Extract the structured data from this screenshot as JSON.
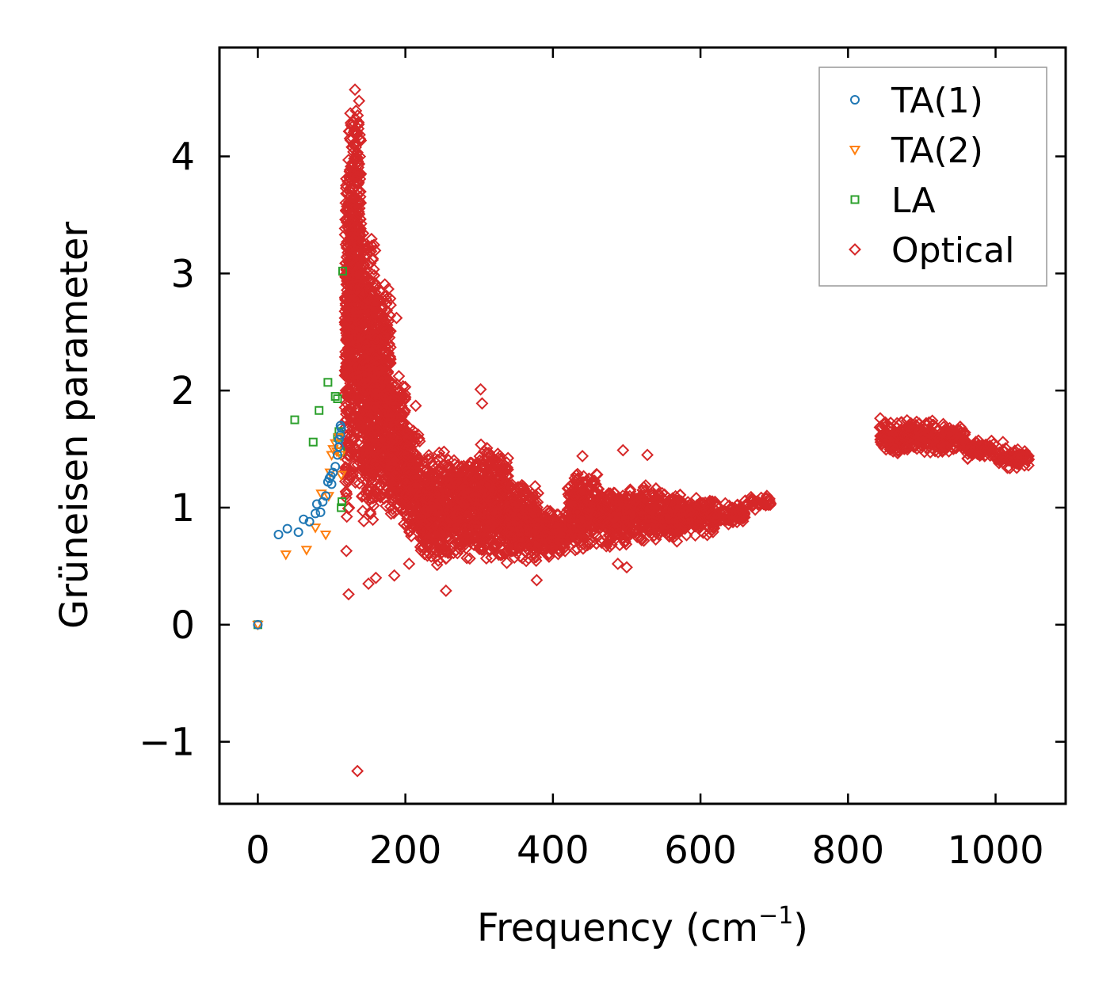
{
  "chart_data": {
    "type": "scatter",
    "title": "",
    "xlabel": "Frequency (cm",
    "xlabel_sup": "−1",
    "xlabel_close": ")",
    "ylabel": "Grüneisen parameter",
    "xlim": [
      -52,
      1095
    ],
    "ylim": [
      -1.53,
      4.93
    ],
    "xticks": [
      0,
      200,
      400,
      600,
      800,
      1000
    ],
    "xtick_labels": [
      "0",
      "200",
      "400",
      "600",
      "800",
      "1000"
    ],
    "yticks": [
      -1,
      0,
      1,
      2,
      3,
      4
    ],
    "ytick_labels": [
      "−1",
      "0",
      "1",
      "2",
      "3",
      "4"
    ],
    "grid": false,
    "legend_position": "top-right",
    "series": [
      {
        "name": "TA(1)",
        "marker": "circle",
        "color": "#1f77b4",
        "points": [
          [
            0,
            0
          ],
          [
            28,
            0.77
          ],
          [
            40,
            0.82
          ],
          [
            55,
            0.79
          ],
          [
            62,
            0.9
          ],
          [
            70,
            0.88
          ],
          [
            78,
            0.95
          ],
          [
            80,
            1.03
          ],
          [
            85,
            0.96
          ],
          [
            88,
            1.05
          ],
          [
            92,
            1.1
          ],
          [
            95,
            1.22
          ],
          [
            97,
            1.25
          ],
          [
            99,
            1.27
          ],
          [
            100,
            1.2
          ],
          [
            102,
            1.3
          ],
          [
            105,
            1.35
          ],
          [
            108,
            1.45
          ],
          [
            110,
            1.58
          ],
          [
            112,
            1.62
          ],
          [
            113,
            1.68
          ],
          [
            112,
            1.7
          ],
          [
            110,
            1.52
          ]
        ]
      },
      {
        "name": "TA(2)",
        "marker": "triangle-down",
        "color": "#ff7f0e",
        "points": [
          [
            0,
            0
          ],
          [
            38,
            0.6
          ],
          [
            66,
            0.64
          ],
          [
            78,
            0.83
          ],
          [
            86,
            1.12
          ],
          [
            92,
            0.77
          ],
          [
            96,
            1.1
          ],
          [
            98,
            1.3
          ],
          [
            100,
            1.45
          ],
          [
            102,
            1.5
          ],
          [
            105,
            1.55
          ],
          [
            107,
            1.48
          ],
          [
            110,
            1.6
          ],
          [
            112,
            1.45
          ],
          [
            113,
            1.28
          ]
        ]
      },
      {
        "name": "LA",
        "marker": "square",
        "color": "#2ca02c",
        "points": [
          [
            0,
            0
          ],
          [
            50,
            1.75
          ],
          [
            75,
            1.56
          ],
          [
            83,
            1.83
          ],
          [
            95,
            2.07
          ],
          [
            105,
            1.95
          ],
          [
            108,
            1.93
          ],
          [
            108,
            1.6
          ],
          [
            110,
            1.65
          ],
          [
            112,
            1.48
          ],
          [
            113,
            1.0
          ],
          [
            114,
            1.05
          ],
          [
            115,
            3.02
          ]
        ]
      },
      {
        "name": "Optical",
        "marker": "diamond",
        "color": "#d62728",
        "bands": [
          {
            "x": [
              118,
              124
            ],
            "y": [
              0.7,
              4.35
            ]
          },
          {
            "x": [
              124,
              140
            ],
            "y": [
              1.1,
              4.65
            ]
          },
          {
            "x": [
              140,
              160
            ],
            "y": [
              0.8,
              3.4
            ]
          },
          {
            "x": [
              160,
              180
            ],
            "y": [
              0.9,
              3.0
            ]
          },
          {
            "x": [
              180,
              200
            ],
            "y": [
              0.8,
              2.2
            ]
          },
          {
            "x": [
              200,
              220
            ],
            "y": [
              0.7,
              1.7
            ]
          },
          {
            "x": [
              220,
              260
            ],
            "y": [
              0.5,
              1.5
            ]
          },
          {
            "x": [
              260,
              300
            ],
            "y": [
              0.55,
              1.45
            ]
          },
          {
            "x": [
              300,
              340
            ],
            "y": [
              0.5,
              1.55
            ]
          },
          {
            "x": [
              340,
              380
            ],
            "y": [
              0.5,
              1.25
            ]
          },
          {
            "x": [
              380,
              420
            ],
            "y": [
              0.55,
              1.0
            ]
          },
          {
            "x": [
              420,
              460
            ],
            "y": [
              0.6,
              1.35
            ]
          },
          {
            "x": [
              460,
              500
            ],
            "y": [
              0.65,
              1.2
            ]
          },
          {
            "x": [
              500,
              540
            ],
            "y": [
              0.7,
              1.2
            ]
          },
          {
            "x": [
              540,
              580
            ],
            "y": [
              0.7,
              1.15
            ]
          },
          {
            "x": [
              580,
              620
            ],
            "y": [
              0.75,
              1.1
            ]
          },
          {
            "x": [
              620,
              660
            ],
            "y": [
              0.85,
              1.05
            ]
          },
          {
            "x": [
              660,
              695
            ],
            "y": [
              0.98,
              1.1
            ]
          },
          {
            "x": [
              843,
              880
            ],
            "y": [
              1.45,
              1.78
            ]
          },
          {
            "x": [
              880,
              920
            ],
            "y": [
              1.45,
              1.75
            ]
          },
          {
            "x": [
              920,
              960
            ],
            "y": [
              1.45,
              1.72
            ]
          },
          {
            "x": [
              960,
              1000
            ],
            "y": [
              1.4,
              1.6
            ]
          },
          {
            "x": [
              1000,
              1045
            ],
            "y": [
              1.32,
              1.52
            ]
          }
        ],
        "outliers": [
          [
            135,
            -1.25
          ],
          [
            123,
            0.26
          ],
          [
            120,
            0.63
          ],
          [
            150,
            0.35
          ],
          [
            160,
            0.4
          ],
          [
            185,
            0.42
          ],
          [
            205,
            0.52
          ],
          [
            255,
            0.29
          ],
          [
            188,
            2.62
          ],
          [
            302,
            2.01
          ],
          [
            304,
            1.89
          ],
          [
            214,
            1.87
          ],
          [
            495,
            1.49
          ],
          [
            528,
            1.45
          ],
          [
            500,
            0.49
          ],
          [
            488,
            0.52
          ],
          [
            440,
            1.44
          ],
          [
            1010,
            1.56
          ],
          [
            690,
            1.1
          ],
          [
            378,
            0.38
          ]
        ]
      }
    ]
  }
}
